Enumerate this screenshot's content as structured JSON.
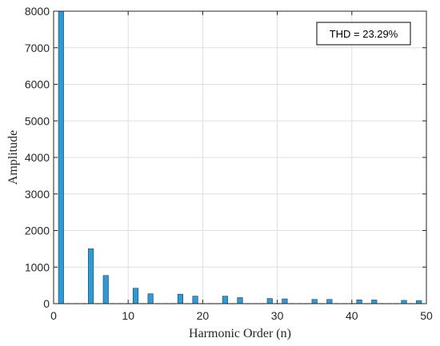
{
  "chart_data": {
    "type": "bar",
    "xlabel": "Harmonic Order (n)",
    "ylabel": "Amplitude",
    "xlim": [
      0,
      50
    ],
    "ylim": [
      0,
      8000
    ],
    "xticks": [
      0,
      10,
      20,
      30,
      40,
      50
    ],
    "yticks": [
      0,
      1000,
      2000,
      3000,
      4000,
      5000,
      6000,
      7000,
      8000
    ],
    "grid": true,
    "bar_color": "#2e9bd6",
    "harmonic_order": [
      1,
      2,
      3,
      4,
      5,
      6,
      7,
      8,
      9,
      10,
      11,
      12,
      13,
      14,
      15,
      16,
      17,
      18,
      19,
      20,
      21,
      22,
      23,
      24,
      25,
      26,
      27,
      28,
      29,
      30,
      31,
      32,
      33,
      34,
      35,
      36,
      37,
      38,
      39,
      40,
      41,
      42,
      43,
      44,
      45,
      46,
      47,
      48,
      49
    ],
    "values": [
      8000,
      5,
      5,
      5,
      1500,
      5,
      770,
      5,
      5,
      5,
      420,
      5,
      270,
      5,
      5,
      5,
      260,
      5,
      205,
      5,
      5,
      5,
      205,
      5,
      165,
      5,
      5,
      5,
      140,
      5,
      130,
      5,
      5,
      5,
      115,
      5,
      115,
      5,
      5,
      5,
      105,
      5,
      100,
      5,
      5,
      5,
      90,
      5,
      85
    ],
    "annotation": "THD = 23.29%"
  }
}
